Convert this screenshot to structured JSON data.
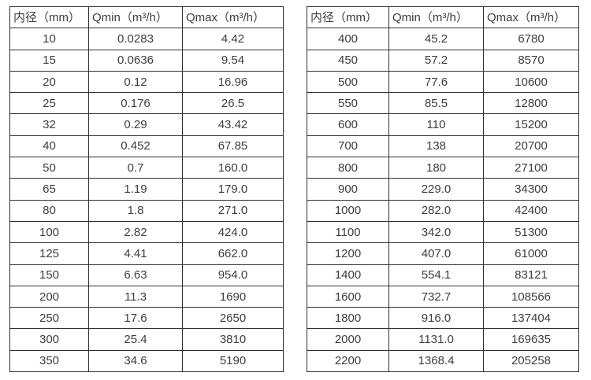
{
  "header": {
    "col_diameter": "内径（mm）",
    "col_qmin": "Qmin（m³/h）",
    "col_qmax": "Qmax（m³/h）"
  },
  "colors": {
    "border": "#303030",
    "text": "#3d3d3d",
    "background": "#ffffff"
  },
  "tables": [
    {
      "name": "small-diameters",
      "rows": [
        [
          "10",
          "0.0283",
          "4.42"
        ],
        [
          "15",
          "0.0636",
          "9.54"
        ],
        [
          "20",
          "0.12",
          "16.96"
        ],
        [
          "25",
          "0.176",
          "26.5"
        ],
        [
          "32",
          "0.29",
          "43.42"
        ],
        [
          "40",
          "0.452",
          "67.85"
        ],
        [
          "50",
          "0.7",
          "160.0"
        ],
        [
          "65",
          "1.19",
          "179.0"
        ],
        [
          "80",
          "1.8",
          "271.0"
        ],
        [
          "100",
          "2.82",
          "424.0"
        ],
        [
          "125",
          "4.41",
          "662.0"
        ],
        [
          "150",
          "6.63",
          "954.0"
        ],
        [
          "200",
          "11.3",
          "1690"
        ],
        [
          "250",
          "17.6",
          "2650"
        ],
        [
          "300",
          "25.4",
          "3810"
        ],
        [
          "350",
          "34.6",
          "5190"
        ]
      ]
    },
    {
      "name": "large-diameters",
      "rows": [
        [
          "400",
          "45.2",
          "6780"
        ],
        [
          "450",
          "57.2",
          "8570"
        ],
        [
          "500",
          "77.6",
          "10600"
        ],
        [
          "550",
          "85.5",
          "12800"
        ],
        [
          "600",
          "110",
          "15200"
        ],
        [
          "700",
          "138",
          "20700"
        ],
        [
          "800",
          "180",
          "27100"
        ],
        [
          "900",
          "229.0",
          "34300"
        ],
        [
          "1000",
          "282.0",
          "42400"
        ],
        [
          "1100",
          "342.0",
          "51300"
        ],
        [
          "1200",
          "407.0",
          "61000"
        ],
        [
          "1400",
          "554.1",
          "83121"
        ],
        [
          "1600",
          "732.7",
          "108566"
        ],
        [
          "1800",
          "916.0",
          "137404"
        ],
        [
          "2000",
          "1131.0",
          "169635"
        ],
        [
          "2200",
          "1368.4",
          "205258"
        ]
      ]
    }
  ]
}
